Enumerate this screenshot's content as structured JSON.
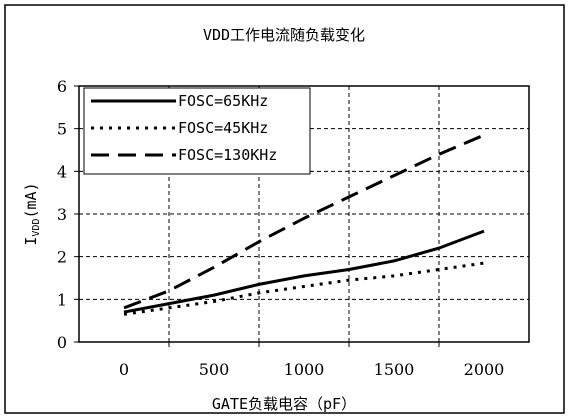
{
  "chart_data": {
    "type": "line",
    "title": "VDD工作电流随负载变化",
    "xlabel": "GATE负载电容（pF）",
    "ylabel": "IVDD(mA)",
    "ylabel_main": "I",
    "ylabel_sub": "VDD",
    "ylabel_tail": "(mA)",
    "xlim": [
      -250,
      2250
    ],
    "ylim": [
      0,
      6
    ],
    "x_ticks": [
      0,
      500,
      1000,
      1500,
      2000
    ],
    "x_tick_labels": [
      "0",
      "500",
      "1000",
      "1500",
      "2000"
    ],
    "y_ticks": [
      0,
      1,
      2,
      3,
      4,
      5,
      6
    ],
    "y_tick_labels": [
      "0",
      "1",
      "2",
      "3",
      "4",
      "5",
      "6"
    ],
    "grid": true,
    "legend_position": "top-left",
    "series": [
      {
        "name": "FOSC=65KHz",
        "style": "solid",
        "color": "#000000",
        "x": [
          0,
          250,
          500,
          750,
          1000,
          1250,
          1500,
          1750,
          2000
        ],
        "y": [
          0.7,
          0.9,
          1.1,
          1.35,
          1.55,
          1.7,
          1.9,
          2.2,
          2.6
        ]
      },
      {
        "name": "FOSC=45KHz",
        "style": "dotted",
        "color": "#000000",
        "x": [
          0,
          250,
          500,
          750,
          1000,
          1250,
          1500,
          1750,
          2000
        ],
        "y": [
          0.65,
          0.8,
          0.95,
          1.15,
          1.3,
          1.45,
          1.55,
          1.7,
          1.85
        ]
      },
      {
        "name": "FOSC=130KHz",
        "style": "dashed",
        "color": "#000000",
        "x": [
          0,
          250,
          500,
          750,
          1000,
          1250,
          1500,
          1750,
          2000
        ],
        "y": [
          0.8,
          1.2,
          1.75,
          2.35,
          2.9,
          3.4,
          3.9,
          4.4,
          4.85
        ]
      }
    ]
  }
}
